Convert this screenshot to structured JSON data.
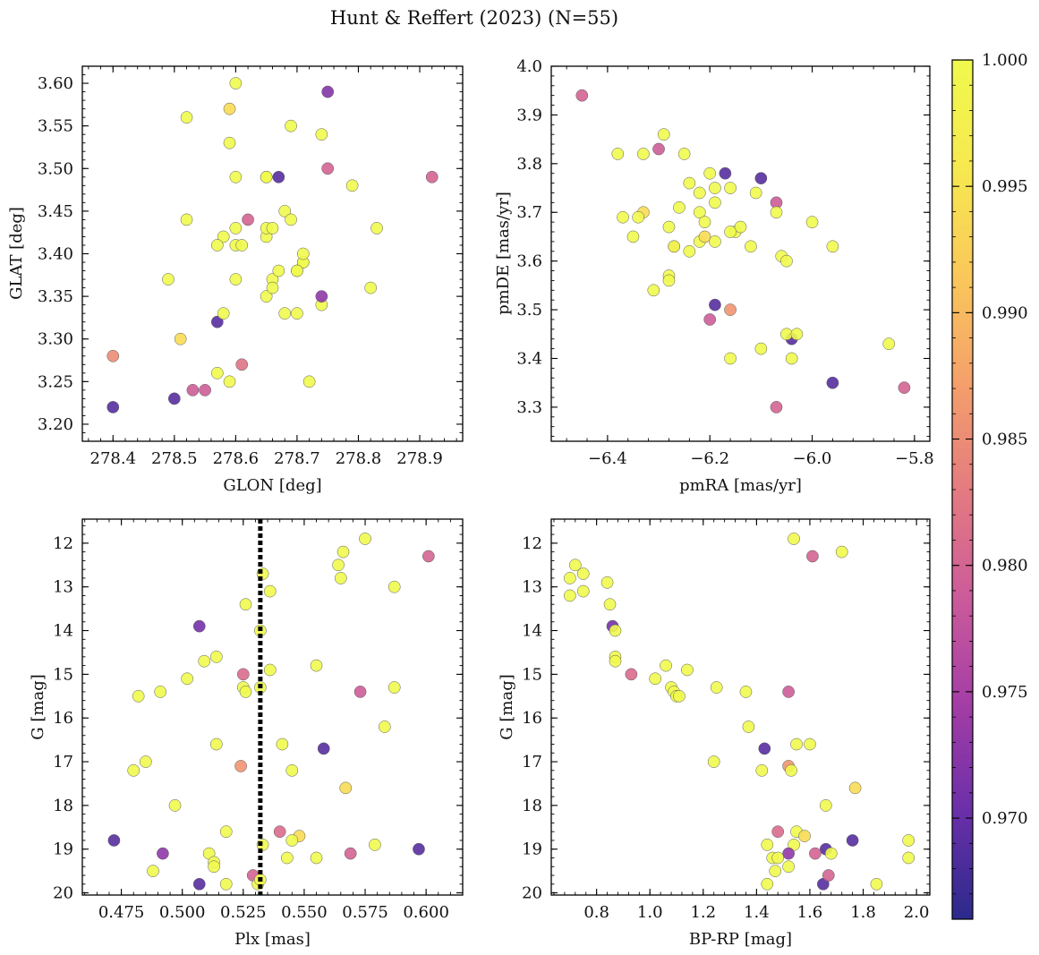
{
  "suptitle": "Hunt & Reffert (2023) (N=55)",
  "colorbar": {
    "vmin": 0.966,
    "vmax": 1.0,
    "ticks": [
      0.97,
      0.975,
      0.98,
      0.985,
      0.99,
      0.995,
      1.0
    ],
    "tick_labels": [
      "0.970",
      "0.975",
      "0.980",
      "0.985",
      "0.990",
      "0.995",
      "1.000"
    ],
    "colormap": [
      "#2b2a8c",
      "#6a2fa8",
      "#a43da6",
      "#cc5b9a",
      "#e47b80",
      "#f4a06a",
      "#fac85a",
      "#f6e94f",
      "#f0f94e"
    ]
  },
  "chart_data": [
    {
      "type": "scatter",
      "id": "glon-glat",
      "title": "",
      "xlabel": "GLON [deg]",
      "ylabel": "GLAT [deg]",
      "xlim": [
        278.35,
        278.97
      ],
      "ylim": [
        3.18,
        3.62
      ],
      "invert_y": false,
      "xticks": [
        278.4,
        278.5,
        278.6,
        278.7,
        278.8,
        278.9
      ],
      "xtick_labels": [
        "278.4",
        "278.5",
        "278.6",
        "278.7",
        "278.8",
        "278.9"
      ],
      "yticks": [
        3.2,
        3.25,
        3.3,
        3.35,
        3.4,
        3.45,
        3.5,
        3.55,
        3.6
      ],
      "ytick_labels": [
        "3.20",
        "3.25",
        "3.30",
        "3.35",
        "3.40",
        "3.45",
        "3.50",
        "3.55",
        "3.60"
      ],
      "x": [
        278.4,
        278.5,
        278.53,
        278.55,
        278.51,
        278.4,
        278.59,
        278.57,
        278.57,
        278.61,
        278.58,
        278.49,
        278.6,
        278.65,
        278.66,
        278.67,
        278.65,
        278.58,
        278.6,
        278.61,
        278.6,
        278.57,
        278.62,
        278.65,
        278.66,
        278.65,
        278.67,
        278.71,
        278.71,
        278.7,
        278.7,
        278.71,
        278.74,
        278.72,
        278.74,
        278.68,
        278.7,
        278.68,
        278.69,
        278.75,
        278.79,
        278.83,
        278.92,
        278.82,
        278.69,
        278.66,
        278.6,
        278.65,
        278.52,
        278.59,
        278.52,
        278.59,
        278.74,
        278.75,
        278.6
      ],
      "y": [
        3.22,
        3.23,
        3.24,
        3.24,
        3.3,
        3.28,
        3.25,
        3.26,
        3.32,
        3.27,
        3.33,
        3.37,
        3.37,
        3.35,
        3.37,
        3.38,
        3.42,
        3.42,
        3.41,
        3.41,
        3.43,
        3.41,
        3.44,
        3.43,
        3.43,
        3.49,
        3.49,
        3.39,
        3.39,
        3.38,
        3.38,
        3.4,
        3.34,
        3.25,
        3.35,
        3.33,
        3.33,
        3.45,
        3.44,
        3.5,
        3.48,
        3.43,
        3.49,
        3.36,
        3.55,
        3.36,
        3.49,
        3.49,
        3.56,
        3.53,
        3.44,
        3.57,
        3.54,
        3.59,
        3.6
      ],
      "color_values": [
        0.969,
        0.969,
        0.979,
        0.979,
        0.994,
        0.985,
        1.0,
        1.0,
        0.969,
        0.982,
        1.0,
        1.0,
        1.0,
        1.0,
        1.0,
        1.0,
        1.0,
        1.0,
        1.0,
        1.0,
        1.0,
        1.0,
        0.98,
        1.0,
        1.0,
        1.0,
        0.969,
        1.0,
        1.0,
        1.0,
        1.0,
        1.0,
        1.0,
        1.0,
        0.973,
        1.0,
        1.0,
        1.0,
        1.0,
        0.98,
        1.0,
        1.0,
        0.98,
        1.0,
        1.0,
        1.0,
        1.0,
        1.0,
        1.0,
        1.0,
        1.0,
        0.994,
        1.0,
        0.972,
        1.0
      ]
    },
    {
      "type": "scatter",
      "id": "pm",
      "title": "",
      "xlabel": "pmRA [mas/yr]",
      "ylabel": "pmDE [mas/yr]",
      "xlim": [
        -6.51,
        -5.77
      ],
      "ylim": [
        3.23,
        4.0
      ],
      "invert_y": false,
      "xticks": [
        -6.4,
        -6.2,
        -6.0,
        -5.8
      ],
      "xtick_labels": [
        "−6.4",
        "−6.2",
        "−6.0",
        "−5.8"
      ],
      "yticks": [
        3.3,
        3.4,
        3.5,
        3.6,
        3.7,
        3.8,
        3.9,
        4.0
      ],
      "ytick_labels": [
        "3.3",
        "3.4",
        "3.5",
        "3.6",
        "3.7",
        "3.8",
        "3.9",
        "4.0"
      ],
      "x": [
        -6.45,
        -6.38,
        -6.33,
        -6.29,
        -6.3,
        -6.25,
        -6.17,
        -6.1,
        -6.24,
        -6.22,
        -6.2,
        -6.19,
        -6.16,
        -6.11,
        -6.33,
        -6.37,
        -6.35,
        -6.34,
        -6.28,
        -6.26,
        -6.22,
        -6.21,
        -6.19,
        -6.15,
        -6.12,
        -6.07,
        -6.07,
        -6.0,
        -5.96,
        -6.14,
        -6.16,
        -6.19,
        -6.22,
        -6.24,
        -6.27,
        -6.27,
        -6.28,
        -6.28,
        -6.31,
        -6.06,
        -6.05,
        -6.04,
        -6.19,
        -6.2,
        -6.16,
        -6.05,
        -6.1,
        -6.16,
        -6.04,
        -6.03,
        -5.85,
        -5.82,
        -5.96,
        -6.07,
        -6.21
      ],
      "y": [
        3.94,
        3.82,
        3.82,
        3.86,
        3.83,
        3.82,
        3.78,
        3.77,
        3.76,
        3.74,
        3.78,
        3.75,
        3.75,
        3.74,
        3.7,
        3.69,
        3.65,
        3.69,
        3.67,
        3.71,
        3.7,
        3.68,
        3.72,
        3.66,
        3.63,
        3.72,
        3.7,
        3.68,
        3.63,
        3.67,
        3.66,
        3.64,
        3.64,
        3.62,
        3.63,
        3.63,
        3.57,
        3.56,
        3.54,
        3.61,
        3.6,
        3.44,
        3.51,
        3.48,
        3.5,
        3.45,
        3.42,
        3.4,
        3.4,
        3.45,
        3.43,
        3.34,
        3.35,
        3.3,
        3.65
      ],
      "color_values": [
        0.98,
        1.0,
        1.0,
        1.0,
        0.979,
        1.0,
        0.969,
        0.969,
        1.0,
        1.0,
        1.0,
        1.0,
        1.0,
        1.0,
        0.994,
        1.0,
        1.0,
        1.0,
        1.0,
        1.0,
        1.0,
        1.0,
        1.0,
        1.0,
        1.0,
        0.979,
        1.0,
        1.0,
        1.0,
        1.0,
        1.0,
        1.0,
        1.0,
        1.0,
        0.985,
        1.0,
        1.0,
        1.0,
        1.0,
        1.0,
        1.0,
        0.969,
        0.969,
        0.979,
        0.986,
        1.0,
        1.0,
        1.0,
        1.0,
        1.0,
        1.0,
        0.98,
        0.969,
        0.98,
        0.994
      ]
    },
    {
      "type": "scatter",
      "id": "plx-g",
      "title": "",
      "xlabel": "Plx [mas]",
      "ylabel": "G [mag]",
      "xlim": [
        0.459,
        0.615
      ],
      "ylim": [
        20.05,
        11.45
      ],
      "invert_y": true,
      "vline": {
        "x": 0.532,
        "style": "dotted",
        "color": "#000000"
      },
      "xticks": [
        0.475,
        0.5,
        0.525,
        0.55,
        0.575,
        0.6
      ],
      "xtick_labels": [
        "0.475",
        "0.500",
        "0.525",
        "0.550",
        "0.575",
        "0.600"
      ],
      "yticks": [
        12,
        13,
        14,
        15,
        16,
        17,
        18,
        19,
        20
      ],
      "ytick_labels": [
        "12",
        "13",
        "14",
        "15",
        "16",
        "17",
        "18",
        "19",
        "20"
      ],
      "x": [
        0.575,
        0.566,
        0.601,
        0.564,
        0.565,
        0.533,
        0.536,
        0.587,
        0.526,
        0.507,
        0.532,
        0.514,
        0.509,
        0.536,
        0.525,
        0.502,
        0.555,
        0.482,
        0.491,
        0.525,
        0.532,
        0.573,
        0.587,
        0.583,
        0.514,
        0.541,
        0.558,
        0.485,
        0.48,
        0.524,
        0.545,
        0.567,
        0.497,
        0.518,
        0.54,
        0.548,
        0.472,
        0.545,
        0.533,
        0.579,
        0.597,
        0.492,
        0.511,
        0.543,
        0.555,
        0.569,
        0.513,
        0.488,
        0.529,
        0.513,
        0.518,
        0.507,
        0.531,
        0.526,
        0.532
      ],
      "y": [
        11.9,
        12.2,
        12.3,
        12.5,
        12.8,
        12.7,
        13.1,
        13.0,
        13.4,
        13.9,
        14.0,
        14.6,
        14.7,
        14.9,
        15.0,
        15.1,
        14.8,
        15.5,
        15.4,
        15.3,
        15.3,
        15.4,
        15.3,
        16.2,
        16.6,
        16.6,
        16.7,
        17.0,
        17.2,
        17.1,
        17.2,
        17.6,
        18.0,
        18.6,
        18.6,
        18.7,
        18.8,
        18.8,
        18.9,
        18.9,
        19.0,
        19.1,
        19.1,
        19.2,
        19.2,
        19.1,
        19.3,
        19.5,
        19.6,
        19.4,
        19.8,
        19.8,
        19.8,
        15.4,
        19.7
      ],
      "color_values": [
        1.0,
        1.0,
        0.98,
        1.0,
        1.0,
        1.0,
        1.0,
        1.0,
        1.0,
        0.971,
        1.0,
        1.0,
        1.0,
        1.0,
        0.981,
        1.0,
        1.0,
        1.0,
        1.0,
        1.0,
        1.0,
        0.979,
        1.0,
        1.0,
        1.0,
        1.0,
        0.969,
        1.0,
        1.0,
        0.986,
        1.0,
        0.994,
        1.0,
        1.0,
        0.981,
        0.994,
        0.969,
        1.0,
        1.0,
        1.0,
        0.969,
        0.973,
        1.0,
        1.0,
        1.0,
        0.98,
        1.0,
        1.0,
        0.98,
        1.0,
        1.0,
        0.969,
        1.0,
        1.0,
        1.0
      ]
    },
    {
      "type": "scatter",
      "id": "cmd",
      "title": "",
      "xlabel": "BP-RP [mag]",
      "ylabel": "G [mag]",
      "xlim": [
        0.63,
        2.05
      ],
      "ylim": [
        20.05,
        11.45
      ],
      "invert_y": true,
      "xticks": [
        0.8,
        1.0,
        1.2,
        1.4,
        1.6,
        1.8,
        2.0
      ],
      "xtick_labels": [
        "0.8",
        "1.0",
        "1.2",
        "1.4",
        "1.6",
        "1.8",
        "2.0"
      ],
      "yticks": [
        12,
        13,
        14,
        15,
        16,
        17,
        18,
        19,
        20
      ],
      "ytick_labels": [
        "12",
        "13",
        "14",
        "15",
        "16",
        "17",
        "18",
        "19",
        "20"
      ],
      "x": [
        1.54,
        1.72,
        1.61,
        0.72,
        0.7,
        0.75,
        0.7,
        0.75,
        0.84,
        0.85,
        0.86,
        0.87,
        0.87,
        0.87,
        0.93,
        1.02,
        1.06,
        1.14,
        1.08,
        1.09,
        1.1,
        1.11,
        1.25,
        1.36,
        1.52,
        1.37,
        1.55,
        1.6,
        1.43,
        1.24,
        1.42,
        1.52,
        1.53,
        1.77,
        1.66,
        1.48,
        1.55,
        1.58,
        1.76,
        1.44,
        1.54,
        1.66,
        1.68,
        1.52,
        1.46,
        1.48,
        1.52,
        1.97,
        1.97,
        1.62,
        1.47,
        1.44,
        1.65,
        1.85,
        1.67
      ],
      "y": [
        11.9,
        12.2,
        12.3,
        12.5,
        12.8,
        12.7,
        13.2,
        13.1,
        12.9,
        13.4,
        13.9,
        14.0,
        14.6,
        14.7,
        15.0,
        15.1,
        14.8,
        14.9,
        15.3,
        15.4,
        15.5,
        15.5,
        15.3,
        15.4,
        15.4,
        16.2,
        16.6,
        16.6,
        16.7,
        17.0,
        17.2,
        17.1,
        17.2,
        17.6,
        18.0,
        18.6,
        18.6,
        18.7,
        18.8,
        18.9,
        18.9,
        19.0,
        19.1,
        19.1,
        19.2,
        19.2,
        19.4,
        18.8,
        19.2,
        19.1,
        19.5,
        19.8,
        19.8,
        19.8,
        19.6
      ],
      "color_values": [
        1.0,
        1.0,
        0.98,
        1.0,
        1.0,
        1.0,
        1.0,
        1.0,
        1.0,
        1.0,
        0.971,
        1.0,
        1.0,
        1.0,
        0.981,
        1.0,
        1.0,
        1.0,
        1.0,
        1.0,
        1.0,
        1.0,
        1.0,
        1.0,
        0.979,
        1.0,
        1.0,
        1.0,
        0.969,
        1.0,
        1.0,
        0.986,
        1.0,
        0.994,
        1.0,
        0.981,
        1.0,
        0.994,
        0.969,
        1.0,
        1.0,
        0.969,
        1.0,
        0.973,
        1.0,
        1.0,
        1.0,
        1.0,
        1.0,
        0.98,
        1.0,
        1.0,
        0.969,
        1.0,
        0.98
      ]
    }
  ]
}
